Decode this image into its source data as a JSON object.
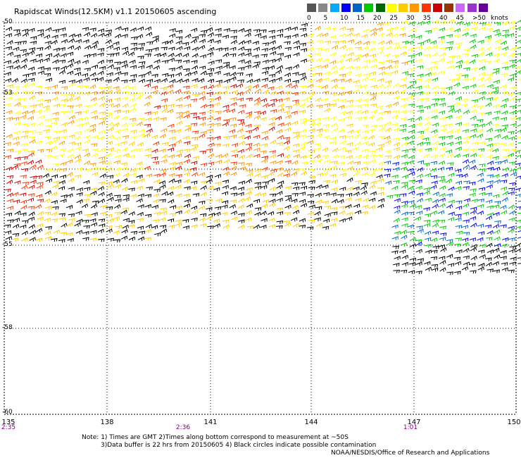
{
  "title": "Rapidscat Winds(12.5KM) v1.1 20150605 ascending",
  "legend": {
    "colors": [
      "#555555",
      "#888888",
      "#00aaff",
      "#0000ff",
      "#0066cc",
      "#00cc00",
      "#006600",
      "#ffff00",
      "#ffcc00",
      "#ff9900",
      "#ff3300",
      "#cc0000",
      "#993300",
      "#cc66ff",
      "#9933cc",
      "#660099"
    ],
    "labels": [
      "0",
      "5",
      "10",
      "15",
      "20",
      "25",
      "30",
      "35",
      "40",
      "45",
      ">50"
    ],
    "units": "knots"
  },
  "axes": {
    "x_ticks": [
      "135",
      "138",
      "141",
      "144",
      "147",
      "150"
    ],
    "y_ticks": [
      "-50",
      "-53",
      "-55",
      "-58",
      "-60"
    ],
    "grid": "dotted"
  },
  "pass_times": [
    "2:35",
    "2:36",
    "1:01"
  ],
  "notes": {
    "line1": "Note: 1) Times are GMT 2)Times along bottom correspond to measurement at ~50S",
    "line2": "3)Data buffer is 22 hrs from 20150605 4) Black circles indicate possible contamination",
    "credit": "NOAA/NESDIS/Office of Research and Applications"
  },
  "map": {
    "lon_range": [
      135,
      150
    ],
    "lat_range": [
      -60,
      -50
    ],
    "swaths": [
      {
        "name": "swath-west",
        "color_by_speed": true
      },
      {
        "name": "swath-east",
        "color_by_speed": true
      }
    ]
  }
}
